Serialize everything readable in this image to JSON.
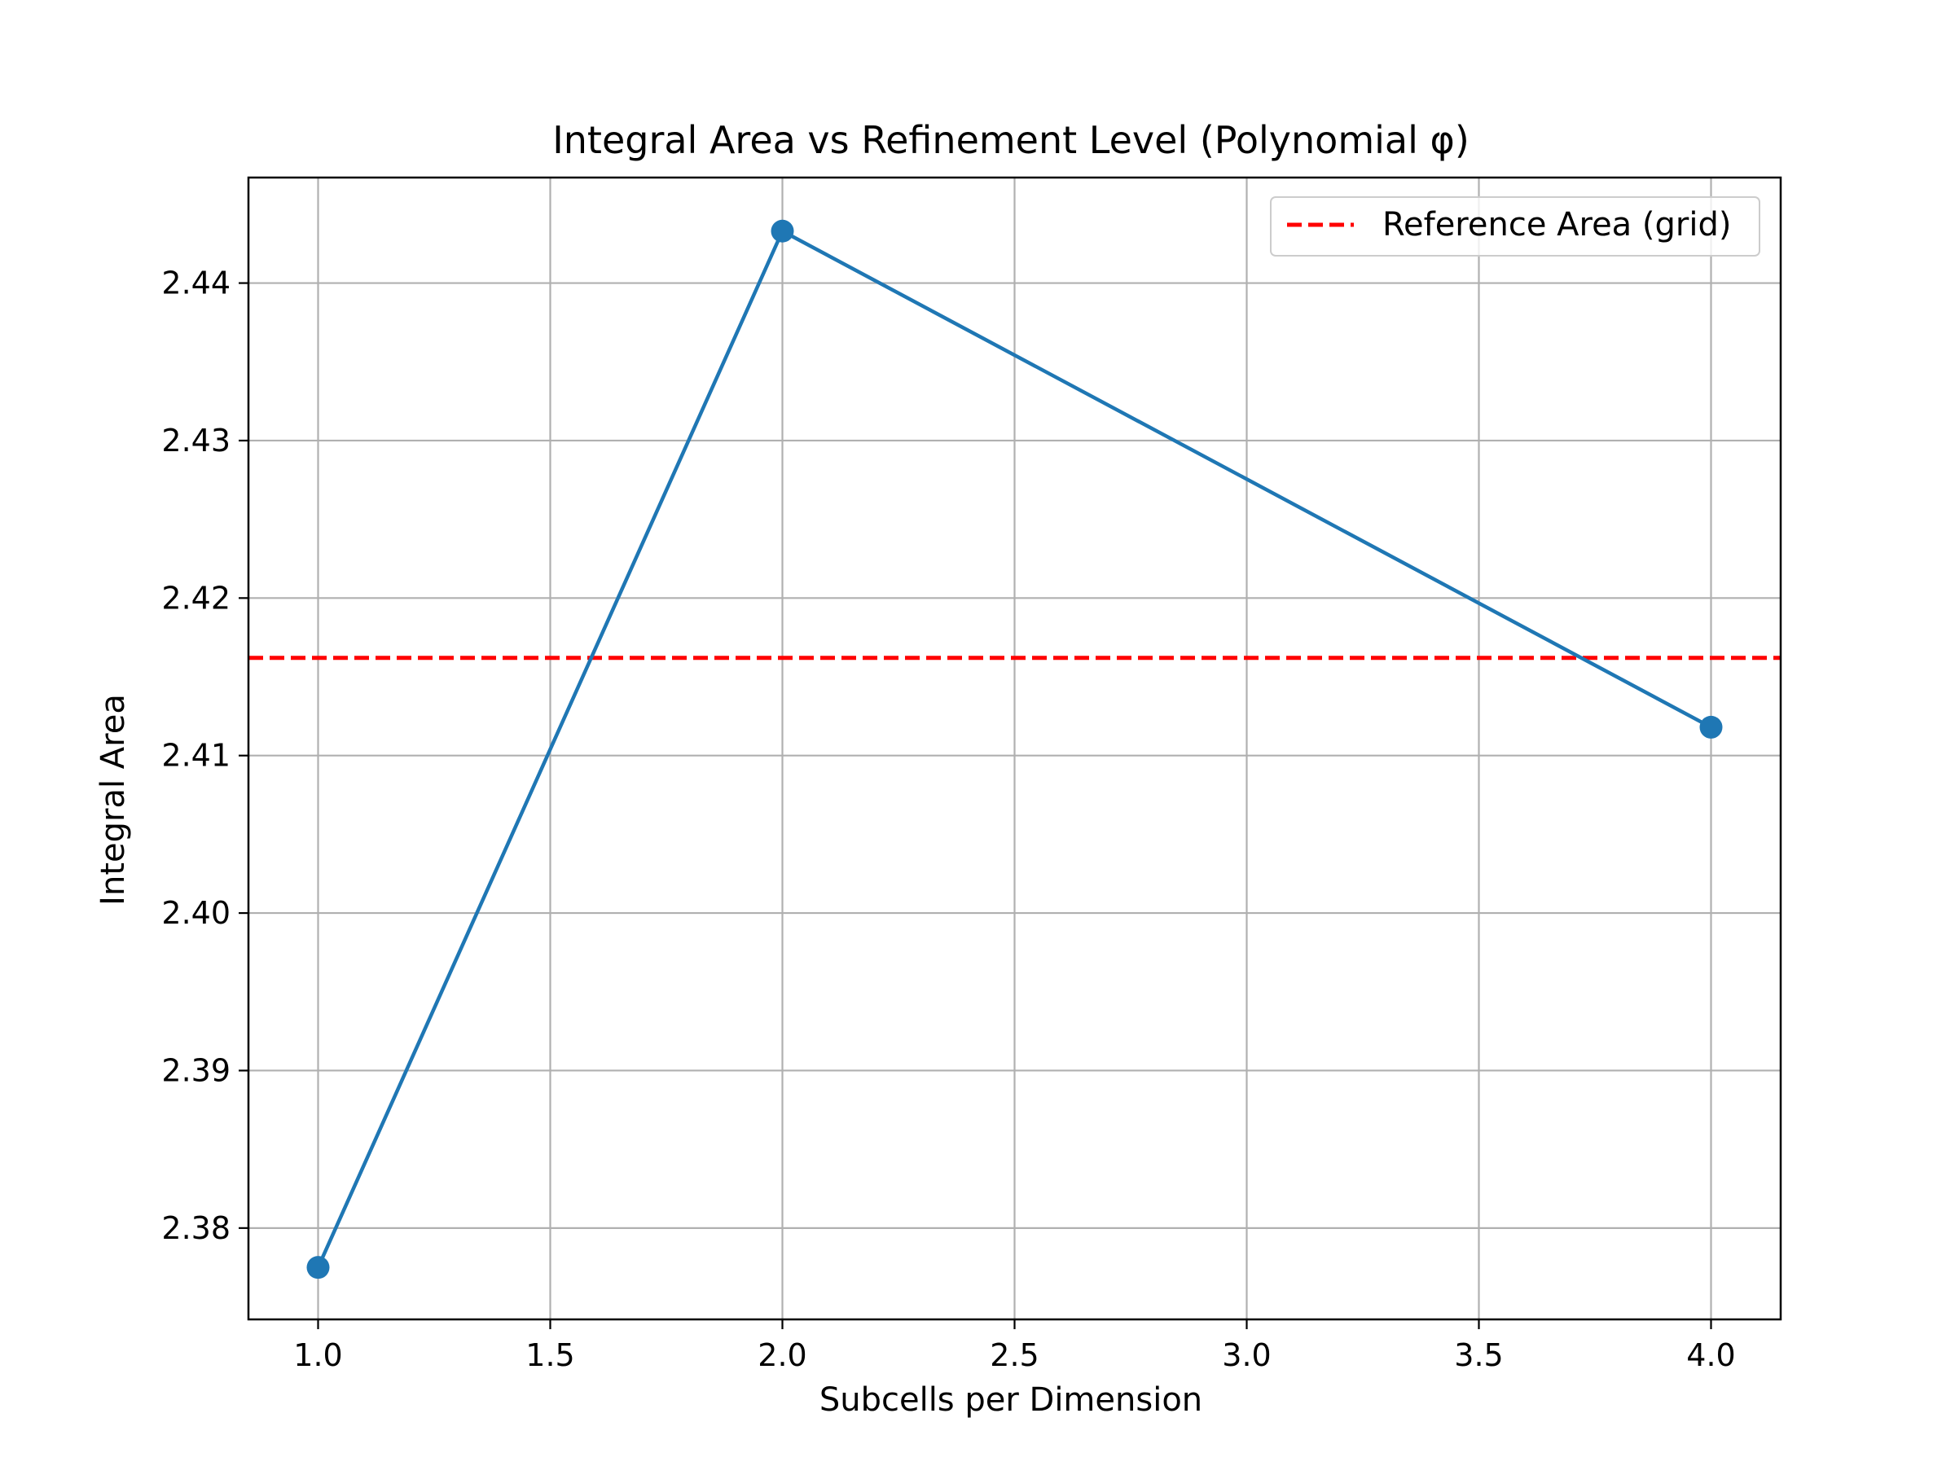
{
  "chart_data": {
    "type": "line",
    "title": "Integral Area vs Refinement Level (Polynomial φ)",
    "xlabel": "Subcells per Dimension",
    "ylabel": "Integral Area",
    "xlim": [
      0.85,
      4.15
    ],
    "ylim": [
      2.3742,
      2.4467
    ],
    "x_ticks": [
      1.0,
      1.5,
      2.0,
      2.5,
      3.0,
      3.5,
      4.0
    ],
    "x_tick_labels": [
      "1.0",
      "1.5",
      "2.0",
      "2.5",
      "3.0",
      "3.5",
      "4.0"
    ],
    "y_ticks": [
      2.38,
      2.39,
      2.4,
      2.41,
      2.42,
      2.43,
      2.44
    ],
    "y_tick_labels": [
      "2.38",
      "2.39",
      "2.40",
      "2.41",
      "2.42",
      "2.43",
      "2.44"
    ],
    "grid": true,
    "legend_position": "top-right",
    "series": [
      {
        "x": [
          1,
          2,
          4
        ],
        "y": [
          2.3775,
          2.4433,
          2.4118
        ],
        "color": "#1f77b4",
        "marker": "circle",
        "line_style": "solid"
      }
    ],
    "reference_lines": [
      {
        "name": "Reference Area (grid)",
        "y": 2.4162,
        "color": "#ff0000",
        "line_style": "dashed"
      }
    ]
  }
}
